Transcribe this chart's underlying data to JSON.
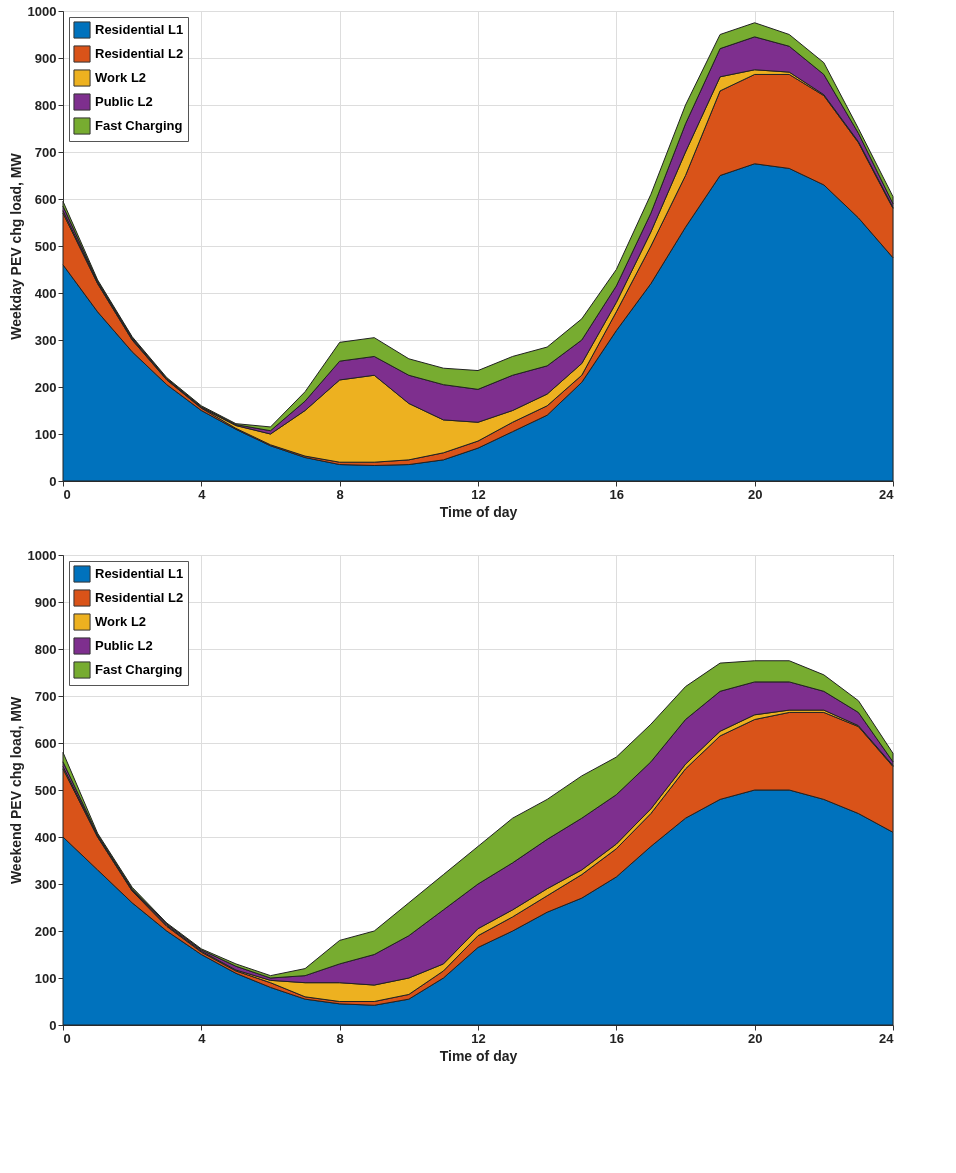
{
  "chart_data": [
    {
      "type": "area",
      "stacked": true,
      "xlabel": "Time of day",
      "ylabel": "Weekday PEV chg load, MW",
      "x": [
        0,
        1,
        2,
        3,
        4,
        5,
        6,
        7,
        8,
        9,
        10,
        11,
        12,
        13,
        14,
        15,
        16,
        17,
        18,
        19,
        20,
        21,
        22,
        23,
        24
      ],
      "series": [
        {
          "name": "Residential L1",
          "color": "#0072bd",
          "values": [
            460,
            360,
            275,
            205,
            150,
            110,
            75,
            50,
            35,
            33,
            35,
            45,
            70,
            105,
            140,
            210,
            320,
            420,
            540,
            650,
            675,
            665,
            630,
            560,
            475
          ]
        },
        {
          "name": "Residential L2",
          "color": "#d95319",
          "values": [
            110,
            60,
            25,
            10,
            5,
            2,
            2,
            3,
            5,
            7,
            10,
            15,
            15,
            20,
            20,
            15,
            40,
            80,
            110,
            180,
            190,
            200,
            190,
            160,
            105
          ]
        },
        {
          "name": "Work L2",
          "color": "#edb120",
          "values": [
            5,
            2,
            2,
            1,
            1,
            6,
            23,
            97,
            175,
            185,
            120,
            70,
            40,
            25,
            25,
            25,
            20,
            30,
            50,
            30,
            10,
            5,
            2,
            2,
            2
          ]
        },
        {
          "name": "Public L2",
          "color": "#7e2f8e",
          "values": [
            10,
            3,
            3,
            2,
            2,
            2,
            7,
            20,
            40,
            40,
            60,
            75,
            70,
            75,
            60,
            50,
            35,
            40,
            60,
            60,
            70,
            55,
            43,
            18,
            8
          ]
        },
        {
          "name": "Fast Charging",
          "color": "#77ac30",
          "values": [
            10,
            3,
            2,
            2,
            2,
            2,
            8,
            20,
            40,
            40,
            35,
            35,
            40,
            40,
            40,
            45,
            35,
            40,
            40,
            30,
            30,
            25,
            25,
            10,
            15
          ]
        }
      ],
      "xlim": [
        0,
        24
      ],
      "xticks": [
        0,
        4,
        8,
        12,
        16,
        20,
        24
      ],
      "ylim": [
        0,
        1000
      ],
      "yticks": [
        0,
        100,
        200,
        300,
        400,
        500,
        600,
        700,
        800,
        900,
        1000
      ],
      "grid": true,
      "legend": "top left"
    },
    {
      "type": "area",
      "stacked": true,
      "xlabel": "Time of day",
      "ylabel": "Weekend PEV chg load, MW",
      "x": [
        0,
        1,
        2,
        3,
        4,
        5,
        6,
        7,
        8,
        9,
        10,
        11,
        12,
        13,
        14,
        15,
        16,
        17,
        18,
        19,
        20,
        21,
        22,
        23,
        24
      ],
      "series": [
        {
          "name": "Residential L1",
          "color": "#0072bd",
          "values": [
            400,
            330,
            260,
            200,
            150,
            110,
            80,
            55,
            45,
            42,
            55,
            100,
            165,
            200,
            240,
            270,
            315,
            380,
            440,
            480,
            500,
            500,
            480,
            450,
            410
          ]
        },
        {
          "name": "Residential L2",
          "color": "#d95319",
          "values": [
            145,
            70,
            25,
            10,
            5,
            5,
            10,
            5,
            5,
            8,
            10,
            15,
            25,
            30,
            35,
            50,
            60,
            70,
            105,
            135,
            150,
            165,
            185,
            185,
            140
          ]
        },
        {
          "name": "Work L2",
          "color": "#edb120",
          "values": [
            5,
            2,
            2,
            2,
            2,
            2,
            5,
            30,
            40,
            35,
            35,
            15,
            15,
            15,
            15,
            10,
            10,
            10,
            10,
            10,
            10,
            5,
            5,
            2,
            2
          ]
        },
        {
          "name": "Public L2",
          "color": "#7e2f8e",
          "values": [
            10,
            3,
            3,
            3,
            3,
            8,
            5,
            15,
            40,
            65,
            90,
            115,
            95,
            100,
            105,
            110,
            105,
            100,
            95,
            85,
            70,
            60,
            40,
            28,
            8
          ]
        },
        {
          "name": "Fast Charging",
          "color": "#77ac30",
          "values": [
            20,
            3,
            3,
            2,
            2,
            5,
            5,
            15,
            50,
            50,
            70,
            75,
            80,
            95,
            85,
            90,
            80,
            80,
            70,
            60,
            45,
            45,
            35,
            25,
            18
          ]
        }
      ],
      "xlim": [
        0,
        24
      ],
      "xticks": [
        0,
        4,
        8,
        12,
        16,
        20,
        24
      ],
      "ylim": [
        0,
        1000
      ],
      "yticks": [
        0,
        100,
        200,
        300,
        400,
        500,
        600,
        700,
        800,
        900,
        1000
      ],
      "grid": true,
      "legend": "top left"
    }
  ]
}
